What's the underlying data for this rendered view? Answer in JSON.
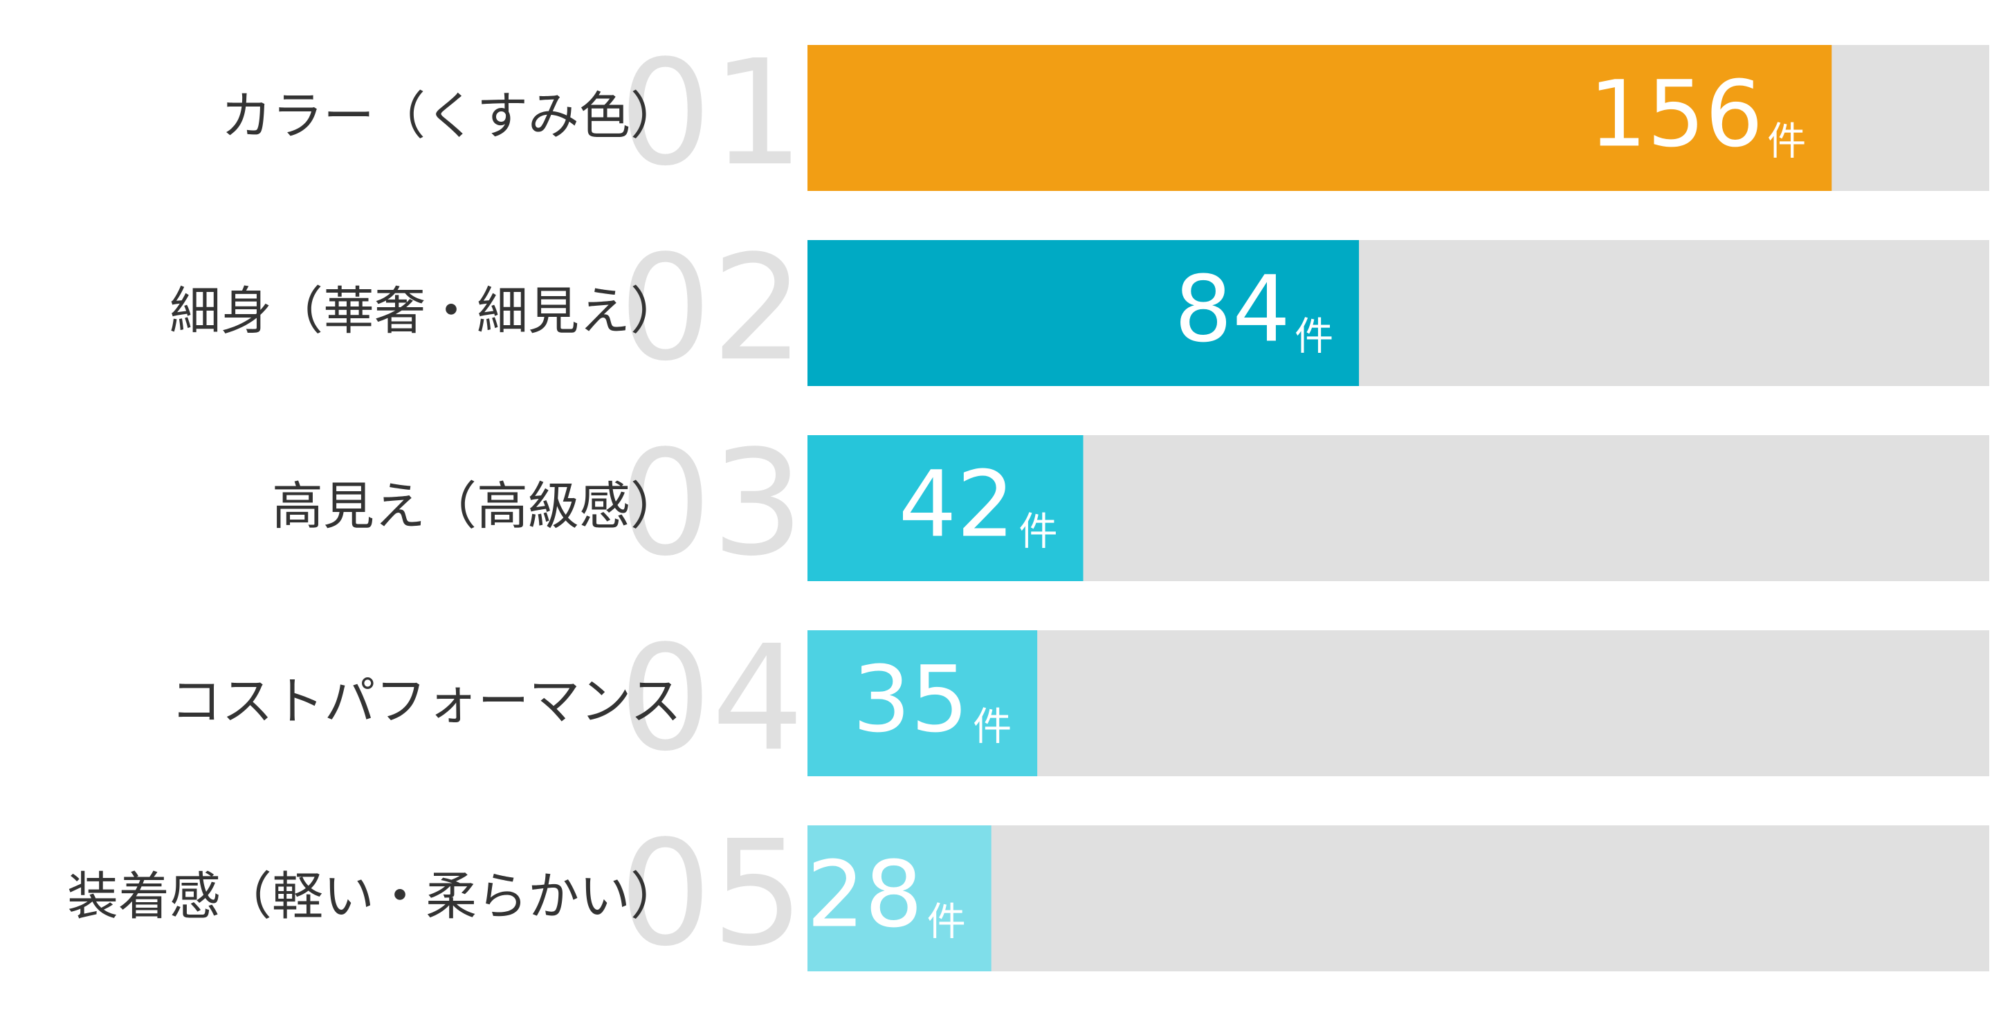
{
  "chart_data": {
    "type": "bar",
    "orientation": "horizontal",
    "categories": [
      "カラー（くすみ色）",
      "細身（華奢・細見え）",
      "高見え（高級感）",
      "コストパフォーマンス",
      "装着感（軽い・柔らかい）"
    ],
    "ranks": [
      "01",
      "02",
      "03",
      "04",
      "05"
    ],
    "values": [
      156,
      84,
      42,
      35,
      28
    ],
    "unit": "件",
    "colors": [
      "#f29e14",
      "#00aac4",
      "#26c5da",
      "#4dd2e3",
      "#7fdeea"
    ],
    "track_color": "#e0e0e0",
    "xlim": [
      0,
      180
    ]
  }
}
